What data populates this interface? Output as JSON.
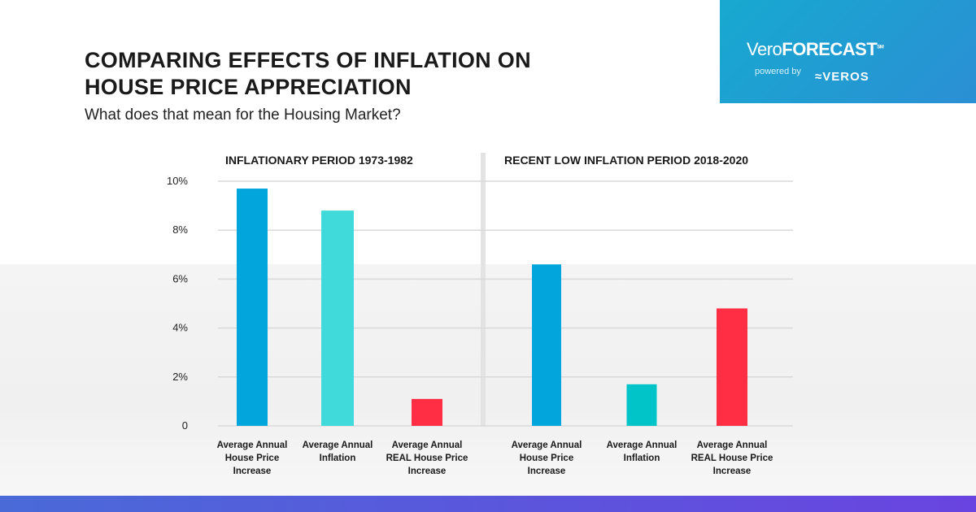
{
  "header": {
    "title_line1": "COMPARING EFFECTS OF INFLATION ON",
    "title_line2": "HOUSE PRICE APPRECIATION",
    "subtitle": "What does that mean for the Housing Market?"
  },
  "brand": {
    "vero": "Vero",
    "forecast": "FORECAST",
    "sm": "SM",
    "powered_by": "powered by",
    "veros": "VEROS",
    "color": "#17a9d0"
  },
  "footer_bar_colors": [
    "#4a6ad8",
    "#6a44e0"
  ],
  "chart_data": {
    "type": "bar",
    "ylim": [
      0,
      10
    ],
    "yticks": [
      {
        "v": 0,
        "label": "0"
      },
      {
        "v": 2,
        "label": "2%"
      },
      {
        "v": 4,
        "label": "4%"
      },
      {
        "v": 6,
        "label": "6%"
      },
      {
        "v": 8,
        "label": "8%"
      },
      {
        "v": 10,
        "label": "10%"
      }
    ],
    "grid": true,
    "groups": [
      {
        "title": "INFLATIONARY PERIOD 1973-1982",
        "bars": [
          {
            "label": "Average Annual House Price Increase",
            "value": 9.7,
            "color": "#03a6dc"
          },
          {
            "label": "Average Annual Inflation",
            "value": 8.8,
            "color": "#40dada"
          },
          {
            "label": "Average Annual REAL House Price Increase",
            "value": 1.1,
            "color": "#ff2e45"
          }
        ]
      },
      {
        "title": "RECENT LOW INFLATION PERIOD 2018-2020",
        "bars": [
          {
            "label": "Average Annual House Price Increase",
            "value": 6.6,
            "color": "#03a6dc"
          },
          {
            "label": "Average Annual Inflation",
            "value": 1.7,
            "color": "#00c4c8"
          },
          {
            "label": "Average Annual REAL House Price Increase",
            "value": 4.8,
            "color": "#ff2e45"
          }
        ]
      }
    ]
  }
}
